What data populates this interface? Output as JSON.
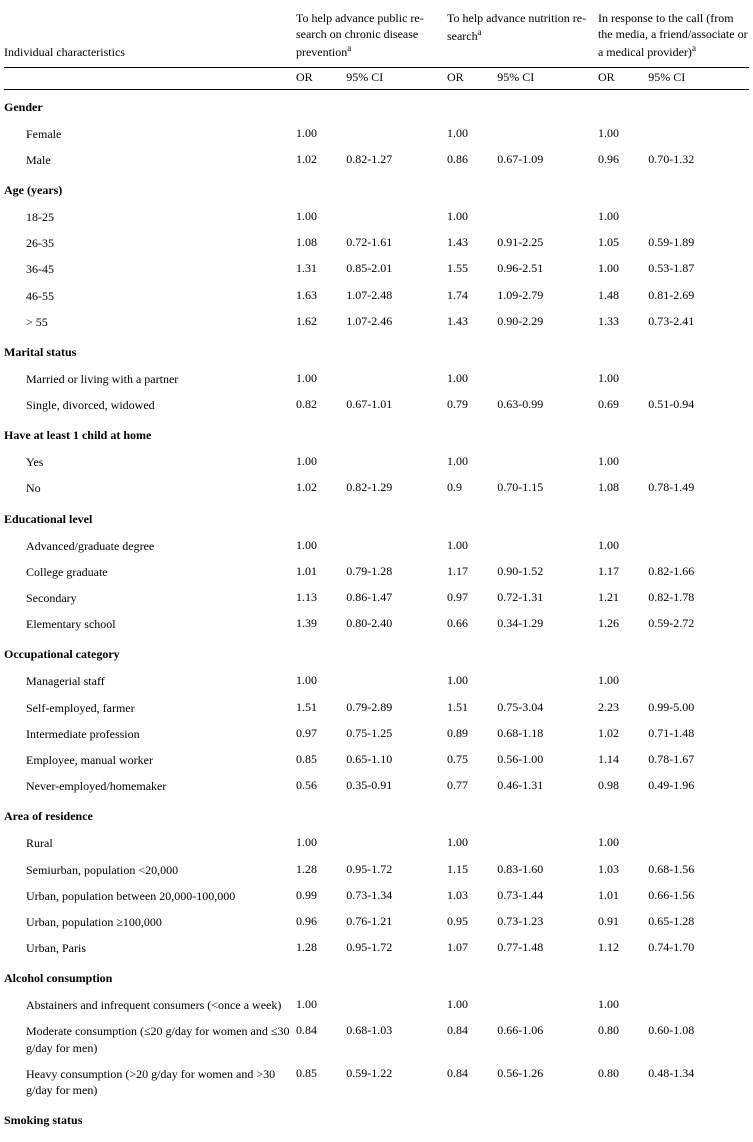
{
  "header": {
    "row_label": "Individual characteristics",
    "cols": [
      {
        "title_pre": "To help advance public re-\nsearch on chronic disease\nprevention",
        "sup": "a"
      },
      {
        "title_pre": "To help advance nutrition re-\nsearch",
        "sup": "a"
      },
      {
        "title_pre": "In response to the call (from\nthe media, a friend/associate\nor a medical provider)",
        "sup": "a"
      }
    ],
    "or_label": "OR",
    "ci_label": "95% CI"
  },
  "sections": [
    {
      "title": "Gender",
      "rows": [
        {
          "label": "Female",
          "v": [
            [
              "1.00",
              ""
            ],
            [
              "1.00",
              ""
            ],
            [
              "1.00",
              ""
            ]
          ]
        },
        {
          "label": "Male",
          "v": [
            [
              "1.02",
              "0.82-1.27"
            ],
            [
              "0.86",
              "0.67-1.09"
            ],
            [
              "0.96",
              "0.70-1.32"
            ]
          ]
        }
      ]
    },
    {
      "title": "Age (years)",
      "rows": [
        {
          "label": "18-25",
          "v": [
            [
              "1.00",
              ""
            ],
            [
              "1.00",
              ""
            ],
            [
              "1.00",
              ""
            ]
          ]
        },
        {
          "label": "26-35",
          "v": [
            [
              "1.08",
              "0.72-1.61"
            ],
            [
              "1.43",
              "0.91-2.25"
            ],
            [
              "1.05",
              "0.59-1.89"
            ]
          ]
        },
        {
          "label": "36-45",
          "v": [
            [
              "1.31",
              "0.85-2.01"
            ],
            [
              "1.55",
              "0.96-2.51"
            ],
            [
              "1.00",
              "0.53-1.87"
            ]
          ]
        },
        {
          "label": "46-55",
          "v": [
            [
              "1.63",
              "1.07-2.48"
            ],
            [
              "1.74",
              "1.09-2.79"
            ],
            [
              "1.48",
              "0.81-2.69"
            ]
          ]
        },
        {
          "label": "> 55",
          "v": [
            [
              "1.62",
              "1.07-2.46"
            ],
            [
              "1.43",
              "0.90-2.29"
            ],
            [
              "1.33",
              "0.73-2.41"
            ]
          ]
        }
      ]
    },
    {
      "title": "Marital status",
      "rows": [
        {
          "label": "Married or living with a partner",
          "v": [
            [
              "1.00",
              ""
            ],
            [
              "1.00",
              ""
            ],
            [
              "1.00",
              ""
            ]
          ]
        },
        {
          "label": "Single, divorced, widowed",
          "v": [
            [
              "0.82",
              "0.67-1.01"
            ],
            [
              "0.79",
              "0.63-0.99"
            ],
            [
              "0.69",
              "0.51-0.94"
            ]
          ]
        }
      ]
    },
    {
      "title": "Have at least 1 child at home",
      "rows": [
        {
          "label": "Yes",
          "v": [
            [
              "1.00",
              ""
            ],
            [
              "1.00",
              ""
            ],
            [
              "1.00",
              ""
            ]
          ]
        },
        {
          "label": "No",
          "v": [
            [
              "1.02",
              "0.82-1.29"
            ],
            [
              "0.9",
              "0.70-1.15"
            ],
            [
              "1.08",
              "0.78-1.49"
            ]
          ]
        }
      ]
    },
    {
      "title": "Educational level",
      "rows": [
        {
          "label": "Advanced/graduate degree",
          "v": [
            [
              "1.00",
              ""
            ],
            [
              "1.00",
              ""
            ],
            [
              "1.00",
              ""
            ]
          ]
        },
        {
          "label": "College graduate",
          "v": [
            [
              "1.01",
              "0.79-1.28"
            ],
            [
              "1.17",
              "0.90-1.52"
            ],
            [
              "1.17",
              "0.82-1.66"
            ]
          ]
        },
        {
          "label": "Secondary",
          "v": [
            [
              "1.13",
              "0.86-1.47"
            ],
            [
              "0.97",
              "0.72-1.31"
            ],
            [
              "1.21",
              "0.82-1.78"
            ]
          ]
        },
        {
          "label": "Elementary school",
          "v": [
            [
              "1.39",
              "0.80-2.40"
            ],
            [
              "0.66",
              "0.34-1.29"
            ],
            [
              "1.26",
              "0.59-2.72"
            ]
          ]
        }
      ]
    },
    {
      "title": "Occupational category",
      "rows": [
        {
          "label": "Managerial staff",
          "v": [
            [
              "1.00",
              ""
            ],
            [
              "1.00",
              ""
            ],
            [
              "1.00",
              ""
            ]
          ]
        },
        {
          "label": "Self-employed, farmer",
          "v": [
            [
              "1.51",
              "0.79-2.89"
            ],
            [
              "1.51",
              "0.75-3.04"
            ],
            [
              "2.23",
              "0.99-5.00"
            ]
          ]
        },
        {
          "label": "Intermediate profession",
          "v": [
            [
              "0.97",
              "0.75-1.25"
            ],
            [
              "0.89",
              "0.68-1.18"
            ],
            [
              "1.02",
              "0.71-1.48"
            ]
          ]
        },
        {
          "label": "Employee, manual worker",
          "v": [
            [
              "0.85",
              "0.65-1.10"
            ],
            [
              "0.75",
              "0.56-1.00"
            ],
            [
              "1.14",
              "0.78-1.67"
            ]
          ]
        },
        {
          "label": "Never-employed/homemaker",
          "v": [
            [
              "0.56",
              "0.35-0.91"
            ],
            [
              "0.77",
              "0.46-1.31"
            ],
            [
              "0.98",
              "0.49-1.96"
            ]
          ]
        }
      ]
    },
    {
      "title": "Area of residence",
      "rows": [
        {
          "label": "Rural",
          "v": [
            [
              "1.00",
              ""
            ],
            [
              "1.00",
              ""
            ],
            [
              "1.00",
              ""
            ]
          ]
        },
        {
          "label": "Semiurban, population <20,000",
          "v": [
            [
              "1.28",
              "0.95-1.72"
            ],
            [
              "1.15",
              "0.83-1.60"
            ],
            [
              "1.03",
              "0.68-1.56"
            ]
          ]
        },
        {
          "label": "Urban, population between 20,000-100,000",
          "v": [
            [
              "0.99",
              "0.73-1.34"
            ],
            [
              "1.03",
              "0.73-1.44"
            ],
            [
              "1.01",
              "0.66-1.56"
            ]
          ]
        },
        {
          "label": "Urban, population ≥100,000",
          "v": [
            [
              "0.96",
              "0.76-1.21"
            ],
            [
              "0.95",
              "0.73-1.23"
            ],
            [
              "0.91",
              "0.65-1.28"
            ]
          ]
        },
        {
          "label": "Urban, Paris",
          "v": [
            [
              "1.28",
              "0.95-1.72"
            ],
            [
              "1.07",
              "0.77-1.48"
            ],
            [
              "1.12",
              "0.74-1.70"
            ]
          ]
        }
      ]
    },
    {
      "title": "Alcohol consumption",
      "rows": [
        {
          "label": "Abstainers and infrequent consumers (<once a week)",
          "v": [
            [
              "1.00",
              ""
            ],
            [
              "1.00",
              ""
            ],
            [
              "1.00",
              ""
            ]
          ]
        },
        {
          "label": "Moderate consumption (≤20 g/day for women and ≤30 g/day for men)",
          "v": [
            [
              "0.84",
              "0.68-1.03"
            ],
            [
              "0.84",
              "0.66-1.06"
            ],
            [
              "0.80",
              "0.60-1.08"
            ]
          ]
        },
        {
          "label": "Heavy consumption (>20 g/day for women and >30 g/day for men)",
          "v": [
            [
              "0.85",
              "0.59-1.22"
            ],
            [
              "0.84",
              "0.56-1.26"
            ],
            [
              "0.80",
              "0.48-1.34"
            ]
          ]
        }
      ]
    },
    {
      "title": "Smoking status",
      "rows": []
    }
  ]
}
